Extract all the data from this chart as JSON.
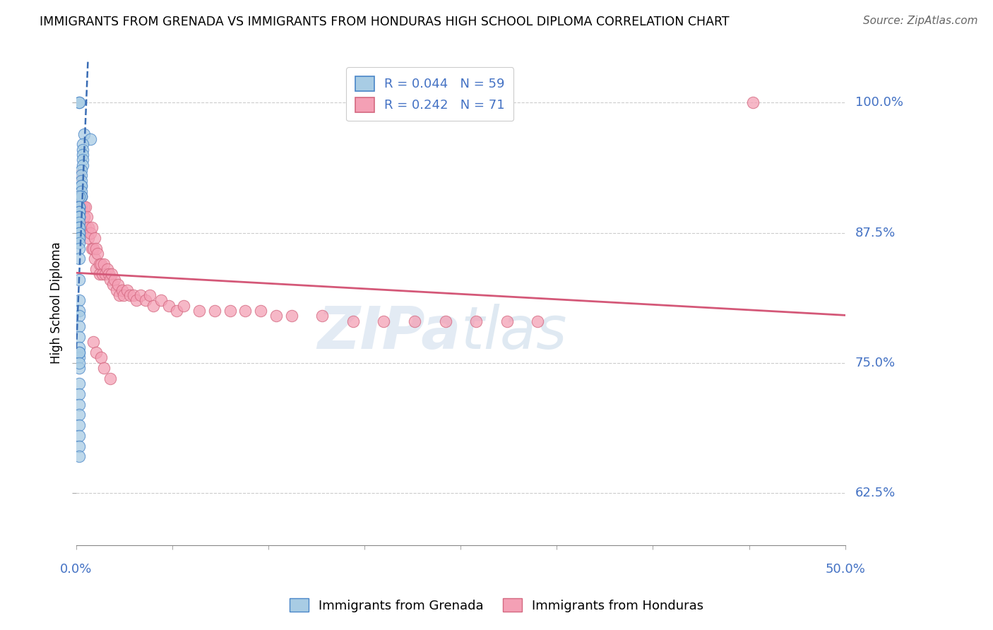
{
  "title": "IMMIGRANTS FROM GRENADA VS IMMIGRANTS FROM HONDURAS HIGH SCHOOL DIPLOMA CORRELATION CHART",
  "source_text": "Source: ZipAtlas.com",
  "ylabel": "High School Diploma",
  "ytick_labels": [
    "62.5%",
    "75.0%",
    "87.5%",
    "100.0%"
  ],
  "ytick_vals": [
    0.625,
    0.75,
    0.875,
    1.0
  ],
  "xlim": [
    0.0,
    0.5
  ],
  "ylim": [
    0.575,
    1.04
  ],
  "color_grenada_fill": "#a8cce4",
  "color_grenada_edge": "#4a86c8",
  "color_grenada_line": "#3a6db5",
  "color_honduras_fill": "#f4a0b5",
  "color_honduras_edge": "#d46880",
  "color_honduras_line": "#d45878",
  "R_grenada": 0.044,
  "N_grenada": 59,
  "R_honduras": 0.242,
  "N_honduras": 71,
  "grenada_x": [
    0.002,
    0.002,
    0.005,
    0.009,
    0.004,
    0.004,
    0.004,
    0.004,
    0.004,
    0.003,
    0.003,
    0.003,
    0.003,
    0.003,
    0.003,
    0.003,
    0.003,
    0.003,
    0.002,
    0.002,
    0.002,
    0.002,
    0.002,
    0.002,
    0.002,
    0.002,
    0.002,
    0.002,
    0.002,
    0.002,
    0.002,
    0.002,
    0.002,
    0.002,
    0.002,
    0.002,
    0.002,
    0.002,
    0.002,
    0.002,
    0.002,
    0.002,
    0.002,
    0.002,
    0.002,
    0.002,
    0.002,
    0.002,
    0.002,
    0.002,
    0.002,
    0.002,
    0.002,
    0.002,
    0.002,
    0.002,
    0.002,
    0.002,
    0.002
  ],
  "grenada_y": [
    1.0,
    1.0,
    0.97,
    0.965,
    0.96,
    0.955,
    0.95,
    0.945,
    0.94,
    0.935,
    0.93,
    0.925,
    0.92,
    0.92,
    0.915,
    0.91,
    0.91,
    0.91,
    0.91,
    0.9,
    0.9,
    0.9,
    0.895,
    0.895,
    0.895,
    0.89,
    0.89,
    0.89,
    0.89,
    0.885,
    0.88,
    0.88,
    0.875,
    0.875,
    0.87,
    0.87,
    0.865,
    0.86,
    0.85,
    0.83,
    0.81,
    0.8,
    0.795,
    0.785,
    0.775,
    0.765,
    0.755,
    0.745,
    0.73,
    0.72,
    0.71,
    0.7,
    0.69,
    0.68,
    0.67,
    0.66,
    0.76,
    0.76,
    0.75
  ],
  "honduras_x": [
    0.002,
    0.002,
    0.002,
    0.003,
    0.003,
    0.005,
    0.005,
    0.006,
    0.006,
    0.007,
    0.008,
    0.008,
    0.009,
    0.01,
    0.01,
    0.011,
    0.012,
    0.012,
    0.013,
    0.013,
    0.014,
    0.015,
    0.015,
    0.016,
    0.017,
    0.018,
    0.019,
    0.02,
    0.021,
    0.022,
    0.023,
    0.024,
    0.025,
    0.026,
    0.027,
    0.028,
    0.03,
    0.031,
    0.033,
    0.035,
    0.037,
    0.039,
    0.042,
    0.045,
    0.048,
    0.05,
    0.055,
    0.06,
    0.065,
    0.07,
    0.08,
    0.09,
    0.1,
    0.11,
    0.12,
    0.13,
    0.14,
    0.16,
    0.18,
    0.2,
    0.22,
    0.24,
    0.26,
    0.28,
    0.3,
    0.44,
    0.011,
    0.013,
    0.016,
    0.018,
    0.022
  ],
  "honduras_y": [
    0.93,
    0.91,
    0.9,
    0.91,
    0.9,
    0.9,
    0.89,
    0.9,
    0.88,
    0.89,
    0.88,
    0.87,
    0.875,
    0.88,
    0.86,
    0.86,
    0.87,
    0.85,
    0.86,
    0.84,
    0.855,
    0.845,
    0.835,
    0.845,
    0.835,
    0.845,
    0.835,
    0.84,
    0.835,
    0.83,
    0.835,
    0.825,
    0.83,
    0.82,
    0.825,
    0.815,
    0.82,
    0.815,
    0.82,
    0.815,
    0.815,
    0.81,
    0.815,
    0.81,
    0.815,
    0.805,
    0.81,
    0.805,
    0.8,
    0.805,
    0.8,
    0.8,
    0.8,
    0.8,
    0.8,
    0.795,
    0.795,
    0.795,
    0.79,
    0.79,
    0.79,
    0.79,
    0.79,
    0.79,
    0.79,
    1.0,
    0.77,
    0.76,
    0.755,
    0.745,
    0.735
  ]
}
